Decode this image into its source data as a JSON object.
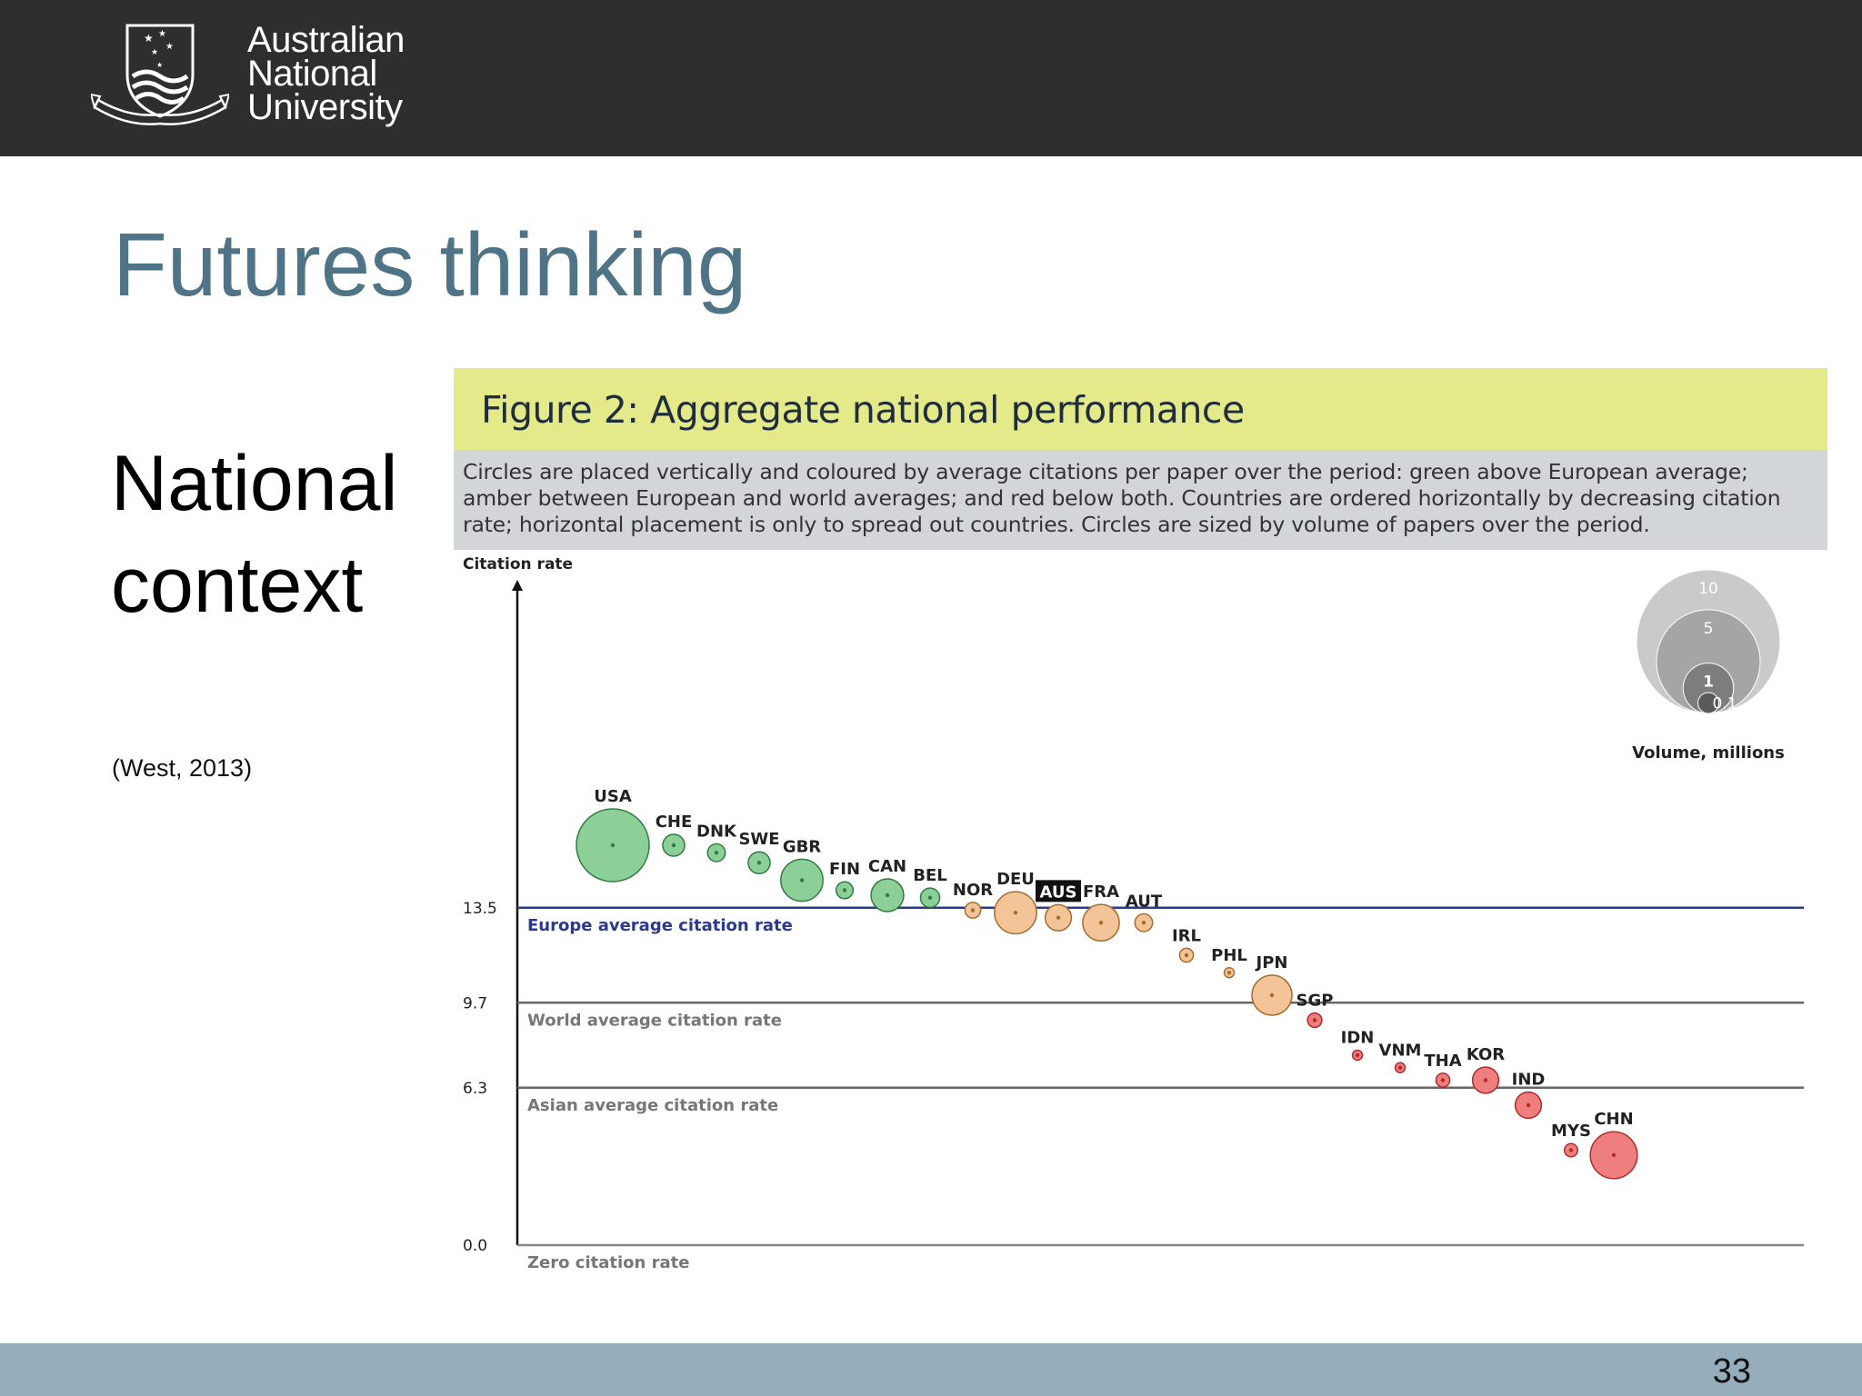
{
  "header": {
    "logo_lines": [
      "Australian",
      "National",
      "University"
    ],
    "crest_motto": "NATURAM PRIMUM COGNOSCERE RERUM",
    "icon": "anu-crest-icon",
    "background": "#2e2e2e"
  },
  "slide": {
    "title": "Futures thinking",
    "subtitle_lines": [
      "National",
      "context"
    ],
    "citation": "(West, 2013)",
    "page_number": "33",
    "title_color": "#4f7487"
  },
  "figure": {
    "title": "Figure 2: Aggregate national performance",
    "description": "Circles are placed vertically and coloured by average citations per paper over the period: green above European average; amber between European and world averages; and red below both. Countries are ordered horizontally by decreasing citation rate; horizontal placement is only to spread out countries. Circles are sized by volume of papers over the period."
  },
  "chart_data": {
    "type": "scatter",
    "ylabel": "Citation rate",
    "ylim": [
      0,
      18
    ],
    "yticks": [
      "13.5",
      "9.7",
      "6.3",
      "0.0"
    ],
    "reference_lines": [
      {
        "value": 13.5,
        "label": "Europe average citation rate",
        "color": "#2a3a8c"
      },
      {
        "value": 9.7,
        "label": "World average citation rate",
        "color": "#666666"
      },
      {
        "value": 6.3,
        "label": "Asian average citation rate",
        "color": "#666666"
      },
      {
        "value": 0.0,
        "label": "Zero citation rate",
        "color": "#888888"
      }
    ],
    "colors": {
      "green": "#8dcf98",
      "amber": "#f2c497",
      "red": "#ef7f7f"
    },
    "points": [
      {
        "code": "USA",
        "y": 16.0,
        "volume": 6.0,
        "color": "green"
      },
      {
        "code": "CHE",
        "y": 16.0,
        "volume": 0.3,
        "color": "green"
      },
      {
        "code": "DNK",
        "y": 15.7,
        "volume": 0.15,
        "color": "green"
      },
      {
        "code": "SWE",
        "y": 15.3,
        "volume": 0.3,
        "color": "green"
      },
      {
        "code": "GBR",
        "y": 14.6,
        "volume": 1.7,
        "color": "green"
      },
      {
        "code": "FIN",
        "y": 14.2,
        "volume": 0.13,
        "color": "green"
      },
      {
        "code": "CAN",
        "y": 14.0,
        "volume": 0.9,
        "color": "green"
      },
      {
        "code": "BEL",
        "y": 13.9,
        "volume": 0.2,
        "color": "green"
      },
      {
        "code": "NOR",
        "y": 13.4,
        "volume": 0.1,
        "color": "amber"
      },
      {
        "code": "DEU",
        "y": 13.3,
        "volume": 1.7,
        "color": "amber"
      },
      {
        "code": "AUS",
        "y": 13.1,
        "volume": 0.5,
        "color": "amber",
        "highlight": true
      },
      {
        "code": "FRA",
        "y": 12.9,
        "volume": 1.2,
        "color": "amber"
      },
      {
        "code": "AUT",
        "y": 12.9,
        "volume": 0.15,
        "color": "amber"
      },
      {
        "code": "IRL",
        "y": 11.6,
        "volume": 0.06,
        "color": "amber"
      },
      {
        "code": "PHL",
        "y": 10.9,
        "volume": 0.01,
        "color": "amber"
      },
      {
        "code": "JPN",
        "y": 10.0,
        "volume": 1.5,
        "color": "amber"
      },
      {
        "code": "SGP",
        "y": 9.0,
        "volume": 0.07,
        "color": "red"
      },
      {
        "code": "IDN",
        "y": 7.6,
        "volume": 0.01,
        "color": "red"
      },
      {
        "code": "VNM",
        "y": 7.1,
        "volume": 0.01,
        "color": "red"
      },
      {
        "code": "THA",
        "y": 6.6,
        "volume": 0.06,
        "color": "red"
      },
      {
        "code": "KOR",
        "y": 6.6,
        "volume": 0.5,
        "color": "red"
      },
      {
        "code": "IND",
        "y": 5.6,
        "volume": 0.5,
        "color": "red"
      },
      {
        "code": "MYS",
        "y": 3.8,
        "volume": 0.05,
        "color": "red"
      },
      {
        "code": "CHN",
        "y": 3.6,
        "volume": 2.2,
        "color": "red"
      }
    ],
    "size_legend": {
      "title": "Volume, millions",
      "entries": [
        {
          "label": "10",
          "value": 10,
          "color": "#cacaca"
        },
        {
          "label": "5",
          "value": 5,
          "color": "#a5a5a5"
        },
        {
          "label": "1",
          "value": 1,
          "color": "#7d7d7d"
        },
        {
          "label": "0.1",
          "value": 0.1,
          "color": "#5a5a5a"
        }
      ]
    }
  }
}
